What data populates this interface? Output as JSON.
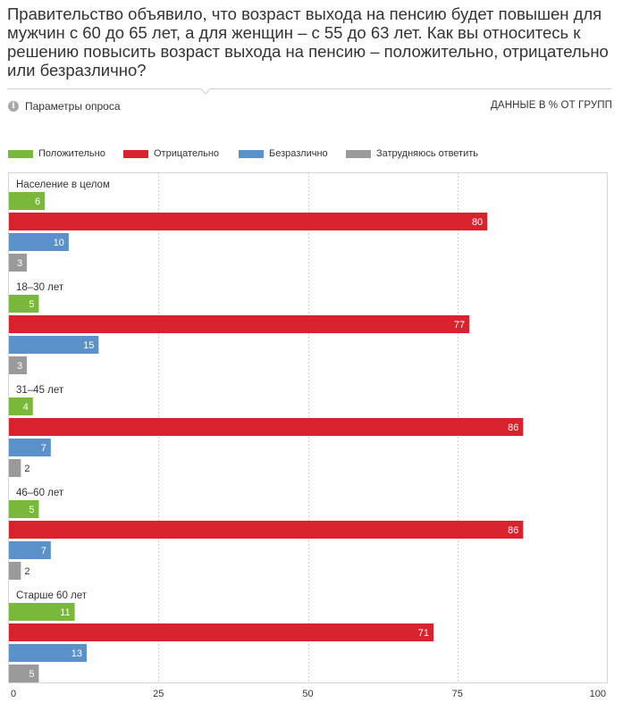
{
  "question": "Правительство объявило, что возраст выхода на пенсию будет повышен для мужчин с 60 до 65 лет, а для женщин – с 55 до 63 лет. Как вы относитесь к решению повысить возраст выхода на пенсию – положительно, отрицательно или безразлично?",
  "params": {
    "info_icon_glyph": "i",
    "label": "Параметры опроса",
    "data_label": "ДАННЫЕ В % ОТ ГРУПП"
  },
  "colors": {
    "positive": "#7ab83a",
    "negative": "#d8232e",
    "indifferent": "#5b91c9",
    "unsure": "#9a9a9a"
  },
  "chart_data": {
    "type": "bar",
    "orientation": "horizontal",
    "categories": [
      "Население в целом",
      "18–30 лет",
      "31–45 лет",
      "46–60 лет",
      "Старше 60 лет"
    ],
    "series": [
      {
        "name": "Положительно",
        "color": "#7ab83a",
        "values": [
          6,
          5,
          4,
          5,
          11
        ]
      },
      {
        "name": "Отрицательно",
        "color": "#d8232e",
        "values": [
          80,
          77,
          86,
          86,
          71
        ]
      },
      {
        "name": "Безразлично",
        "color": "#5b91c9",
        "values": [
          10,
          15,
          7,
          7,
          13
        ]
      },
      {
        "name": "Затрудняюсь ответить",
        "color": "#9a9a9a",
        "values": [
          3,
          3,
          2,
          2,
          5
        ]
      }
    ],
    "xlim": [
      0,
      100
    ],
    "xticks": [
      0,
      25,
      50,
      75,
      100
    ],
    "grid": true,
    "legend_position": "top-left"
  }
}
